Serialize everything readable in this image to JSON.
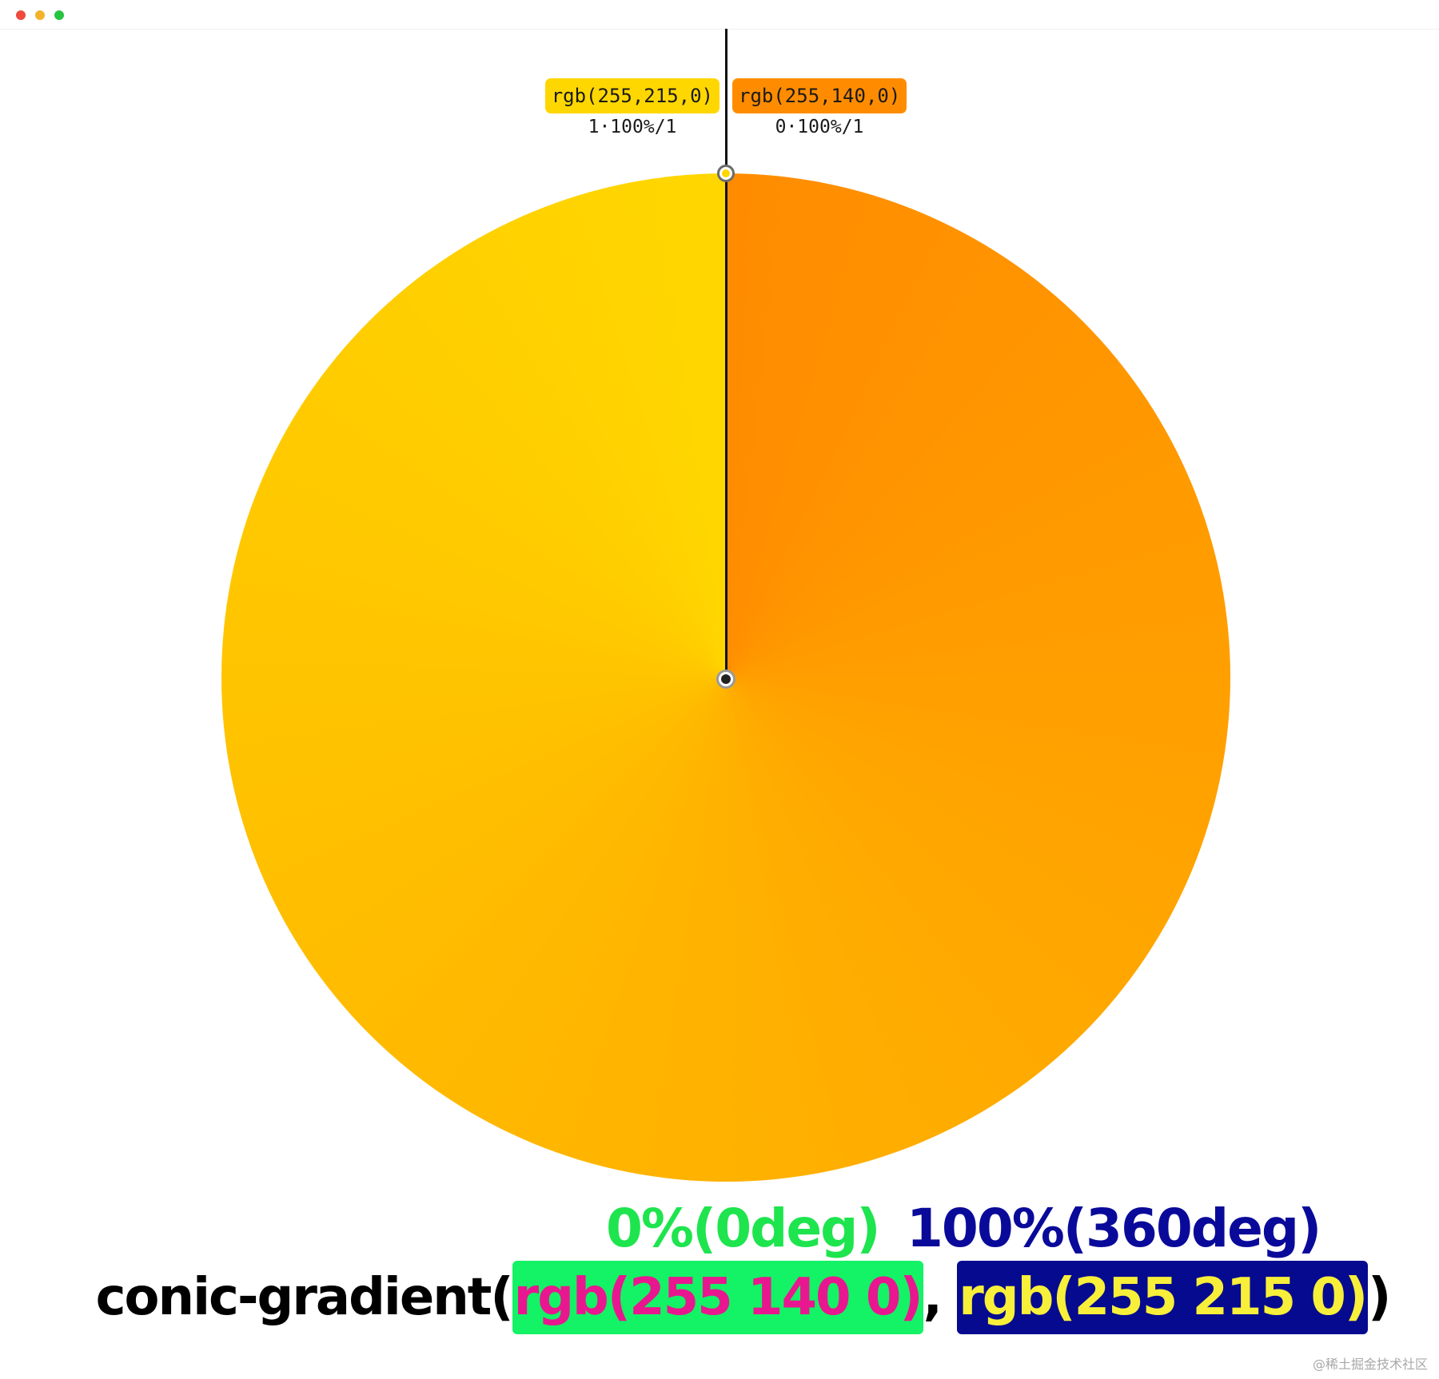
{
  "window": {
    "traffic_lights": {
      "close_color": "#ee4a3d",
      "minimize_color": "#f2b32b",
      "zoom_color": "#26c43f"
    }
  },
  "gradient": {
    "from_color": "#ff8c00",
    "to_color": "#ffd700"
  },
  "stops": {
    "left": {
      "label": "rgb(255,215,0)",
      "position": "1·100%/1",
      "color": "#ffd700"
    },
    "right": {
      "label": "rgb(255,140,0)",
      "position": "0·100%/1",
      "color": "#ff8c00"
    }
  },
  "captions": {
    "start": "0%(0deg)",
    "start_color": "#1ee44e",
    "end": "100%(360deg)",
    "end_color": "#0a0a9a"
  },
  "code": {
    "fn": "conic-gradient(",
    "color1": "rgb(255 140 0)",
    "color1_text": "#e8178f",
    "color1_bg": "#14f266",
    "separator": ", ",
    "color2": "rgb(255 215 0)",
    "color2_text": "#f7ef3a",
    "color2_bg": "#060a8f",
    "close": ")"
  },
  "watermark": "@稀土掘金技术社区"
}
